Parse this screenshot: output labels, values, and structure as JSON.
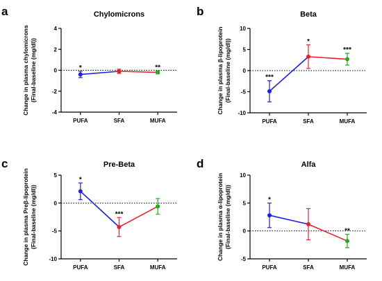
{
  "chart_data": [
    {
      "panel": "a",
      "type": "line",
      "title": "Chylomicrons",
      "ylabel": [
        "Change in plasma  chylomicrons",
        "(Final-baseline (mg/dl))"
      ],
      "categories": [
        "PUFA",
        "SFA",
        "MUFA"
      ],
      "ylim": [
        -4,
        4
      ],
      "yticks": [
        -4,
        -2,
        0,
        2,
        4
      ],
      "yticklabels": [
        "-4",
        "-2",
        "0",
        "2",
        "4"
      ],
      "means": [
        -0.4,
        -0.1,
        -0.2
      ],
      "errors": [
        0.3,
        0.2,
        0.15
      ],
      "significance": [
        "*",
        "",
        "**"
      ],
      "segment_colors": [
        "#1f1fe0",
        "#e8202a"
      ],
      "point_colors": [
        "#1f1fe0",
        "#e8202a",
        "#22aa22"
      ]
    },
    {
      "panel": "b",
      "type": "line",
      "title": "Beta",
      "ylabel": [
        "Change in plasma  β-lipoprotein",
        "(Final-baseline (mg/dl))"
      ],
      "categories": [
        "PUFA",
        "SFA",
        "MUFA"
      ],
      "ylim": [
        -10,
        10
      ],
      "yticks": [
        -10,
        -5,
        0,
        5,
        10
      ],
      "yticklabels": [
        "-10",
        "-5",
        "0",
        "5",
        "10"
      ],
      "means": [
        -4.9,
        3.3,
        2.7
      ],
      "errors": [
        2.5,
        2.8,
        1.4
      ],
      "significance": [
        "***",
        "*",
        "***"
      ],
      "segment_colors": [
        "#1f1fe0",
        "#e8202a"
      ],
      "point_colors": [
        "#1f1fe0",
        "#e8202a",
        "#22aa22"
      ]
    },
    {
      "panel": "c",
      "type": "line",
      "title": "Pre-Beta",
      "ylabel": [
        "Change in plasma  Preβ-lipoprotein",
        "(Final-baseline (mg/dl))"
      ],
      "categories": [
        "PUFA",
        "SFA",
        "MUFA"
      ],
      "ylim": [
        -10,
        5
      ],
      "yticks": [
        -10,
        -5,
        0,
        5
      ],
      "yticklabels": [
        "-10",
        "-5",
        "0",
        "5"
      ],
      "means": [
        2.1,
        -4.3,
        -0.6
      ],
      "errors": [
        1.5,
        1.7,
        1.4
      ],
      "significance": [
        "*",
        "***",
        ""
      ],
      "segment_colors": [
        "#1f1fe0",
        "#e8202a"
      ],
      "point_colors": [
        "#1f1fe0",
        "#e8202a",
        "#22aa22"
      ]
    },
    {
      "panel": "d",
      "type": "line",
      "title": "Alfa",
      "ylabel": [
        "Change in plasma  α-lipoprotein",
        "(Final-baseline (mg/dl))"
      ],
      "categories": [
        "PUFA",
        "SFA",
        "MUFA"
      ],
      "ylim": [
        -5,
        10
      ],
      "yticks": [
        -5,
        0,
        5,
        10
      ],
      "yticklabels": [
        "-5",
        "0",
        "5",
        "10"
      ],
      "means": [
        2.8,
        1.2,
        -1.8
      ],
      "errors": [
        2.2,
        2.8,
        1.2
      ],
      "significance": [
        "*",
        "",
        "**"
      ],
      "segment_colors": [
        "#1f1fe0",
        "#e8202a"
      ],
      "point_colors": [
        "#1f1fe0",
        "#e8202a",
        "#22aa22"
      ]
    }
  ]
}
